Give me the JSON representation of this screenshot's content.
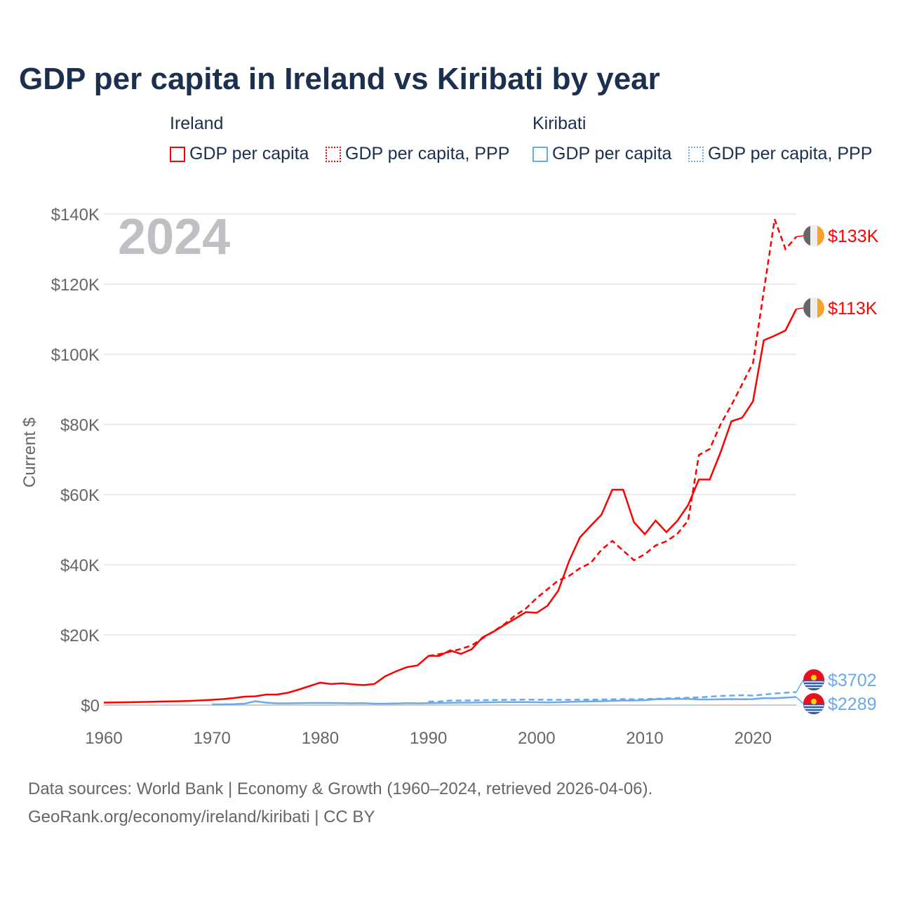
{
  "title": "GDP per capita in Ireland vs Kiribati by year",
  "legend": {
    "groups": [
      {
        "name": "Ireland",
        "items": [
          "GDP per capita",
          "GDP per capita, PPP"
        ]
      },
      {
        "name": "Kiribati",
        "items": [
          "GDP per capita",
          "GDP per capita, PPP"
        ]
      }
    ]
  },
  "footer": {
    "line1": "Data sources: World Bank | Economy & Growth (1960–2024, retrieved 2026-04-06).",
    "line2": "GeoRank.org/economy/ireland/kiribati | CC BY"
  },
  "colors": {
    "ireland": "#ff0000",
    "kiribati": "#6aaaea"
  },
  "chart_data": {
    "type": "line",
    "title": "GDP per capita in Ireland vs Kiribati by year",
    "ylabel": "Current $",
    "year_label": "2024",
    "xlim": [
      1960,
      2024
    ],
    "ylim": [
      0,
      140000
    ],
    "xticks": [
      1960,
      1970,
      1980,
      1990,
      2000,
      2010,
      2020
    ],
    "yticks": [
      {
        "v": 0,
        "label": "$0"
      },
      {
        "v": 20000,
        "label": "$20K"
      },
      {
        "v": 40000,
        "label": "$40K"
      },
      {
        "v": 60000,
        "label": "$60K"
      },
      {
        "v": 80000,
        "label": "$80K"
      },
      {
        "v": 100000,
        "label": "$100K"
      },
      {
        "v": 120000,
        "label": "$120K"
      },
      {
        "v": 140000,
        "label": "$140K"
      }
    ],
    "series": [
      {
        "name": "Ireland GDP per capita",
        "country": "ireland",
        "dashed": false,
        "start": 1960,
        "end_label": "$113K",
        "values_k": [
          0.7,
          0.75,
          0.8,
          0.85,
          0.9,
          1.0,
          1.05,
          1.1,
          1.2,
          1.35,
          1.5,
          1.7,
          2.0,
          2.4,
          2.5,
          3.0,
          3.0,
          3.5,
          4.4,
          5.4,
          6.4,
          6.0,
          6.2,
          5.9,
          5.7,
          6.0,
          8.2,
          9.6,
          10.8,
          11.3,
          14.0,
          14.0,
          15.6,
          14.6,
          15.9,
          19.3,
          20.9,
          22.8,
          24.6,
          26.5,
          26.3,
          28.3,
          32.6,
          41.0,
          47.8,
          51.1,
          54.3,
          61.4,
          61.4,
          52.1,
          48.7,
          52.6,
          49.3,
          52.5,
          57.0,
          64.3,
          64.3,
          72.0,
          80.9,
          81.9,
          86.6,
          104.0,
          105.3,
          106.8,
          112.9
        ]
      },
      {
        "name": "Ireland GDP per capita, PPP",
        "country": "ireland",
        "dashed": true,
        "start": 1990,
        "end_label": "$133K",
        "values_k": [
          14.0,
          14.5,
          15.2,
          16.0,
          17.0,
          19.0,
          21.0,
          23.0,
          25.5,
          27.5,
          30.5,
          33.0,
          35.5,
          36.8,
          39.0,
          40.5,
          44.3,
          46.8,
          44.0,
          41.3,
          43.0,
          45.5,
          46.7,
          48.8,
          52.6,
          71.3,
          73.0,
          80.0,
          85.5,
          91.5,
          97.5,
          118.0,
          138.5,
          130.0,
          133.5
        ]
      },
      {
        "name": "Kiribati GDP per capita",
        "country": "kiribati",
        "dashed": false,
        "start": 1970,
        "end_label": "$2289",
        "values_k": [
          0.2,
          0.2,
          0.25,
          0.4,
          1.1,
          0.7,
          0.5,
          0.5,
          0.55,
          0.6,
          0.6,
          0.6,
          0.55,
          0.5,
          0.55,
          0.4,
          0.4,
          0.45,
          0.55,
          0.5,
          0.55,
          0.6,
          0.65,
          0.7,
          0.7,
          0.75,
          0.8,
          0.85,
          0.85,
          0.85,
          0.8,
          0.75,
          0.8,
          0.9,
          1.0,
          1.05,
          1.1,
          1.2,
          1.3,
          1.3,
          1.4,
          1.65,
          1.7,
          1.75,
          1.75,
          1.6,
          1.6,
          1.65,
          1.7,
          1.65,
          1.7,
          2.0,
          1.95,
          2.1,
          2.29
        ]
      },
      {
        "name": "Kiribati GDP per capita, PPP",
        "country": "kiribati",
        "dashed": true,
        "start": 1990,
        "end_label": "$3702",
        "values_k": [
          1.0,
          1.0,
          1.3,
          1.3,
          1.35,
          1.4,
          1.45,
          1.5,
          1.5,
          1.55,
          1.55,
          1.5,
          1.5,
          1.5,
          1.55,
          1.55,
          1.6,
          1.65,
          1.7,
          1.65,
          1.7,
          1.8,
          1.9,
          2.0,
          2.1,
          2.2,
          2.4,
          2.6,
          2.7,
          2.8,
          2.7,
          3.0,
          3.3,
          3.5,
          3.7
        ]
      }
    ]
  }
}
